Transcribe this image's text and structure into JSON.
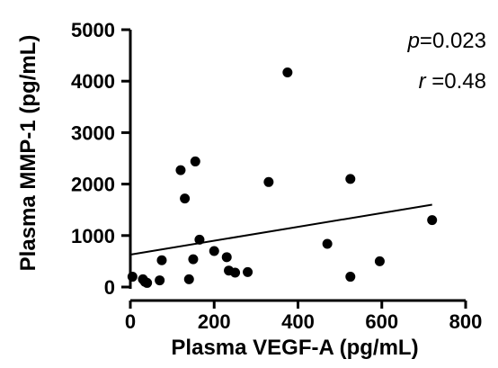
{
  "chart_data": {
    "type": "scatter",
    "xlabel": "Plasma VEGF-A (pg/mL)",
    "ylabel": "Plasma MMP-1 (pg/mL)",
    "xlim": [
      0,
      800
    ],
    "ylim": [
      0,
      5000
    ],
    "x_ticks": [
      "0",
      "200",
      "400",
      "600",
      "800"
    ],
    "y_ticks": [
      "0",
      "1000",
      "2000",
      "3000",
      "4000",
      "5000"
    ],
    "points": [
      {
        "x": 5,
        "y": 200
      },
      {
        "x": 30,
        "y": 150
      },
      {
        "x": 35,
        "y": 100
      },
      {
        "x": 40,
        "y": 80
      },
      {
        "x": 70,
        "y": 130
      },
      {
        "x": 75,
        "y": 520
      },
      {
        "x": 120,
        "y": 2270
      },
      {
        "x": 130,
        "y": 1720
      },
      {
        "x": 140,
        "y": 150
      },
      {
        "x": 150,
        "y": 540
      },
      {
        "x": 155,
        "y": 2440
      },
      {
        "x": 165,
        "y": 920
      },
      {
        "x": 200,
        "y": 700
      },
      {
        "x": 230,
        "y": 580
      },
      {
        "x": 235,
        "y": 320
      },
      {
        "x": 250,
        "y": 280
      },
      {
        "x": 280,
        "y": 290
      },
      {
        "x": 330,
        "y": 2040
      },
      {
        "x": 375,
        "y": 4170
      },
      {
        "x": 470,
        "y": 840
      },
      {
        "x": 525,
        "y": 2100
      },
      {
        "x": 525,
        "y": 200
      },
      {
        "x": 595,
        "y": 500
      },
      {
        "x": 720,
        "y": 1300
      }
    ],
    "fit_line": {
      "x": [
        0,
        720
      ],
      "y": [
        630,
        1600
      ]
    },
    "annotations": {
      "p_symbol": "p",
      "p_value": "=0.023",
      "r_symbol": "r",
      "r_value": " =0.48"
    },
    "grid": false,
    "legend": "none"
  }
}
